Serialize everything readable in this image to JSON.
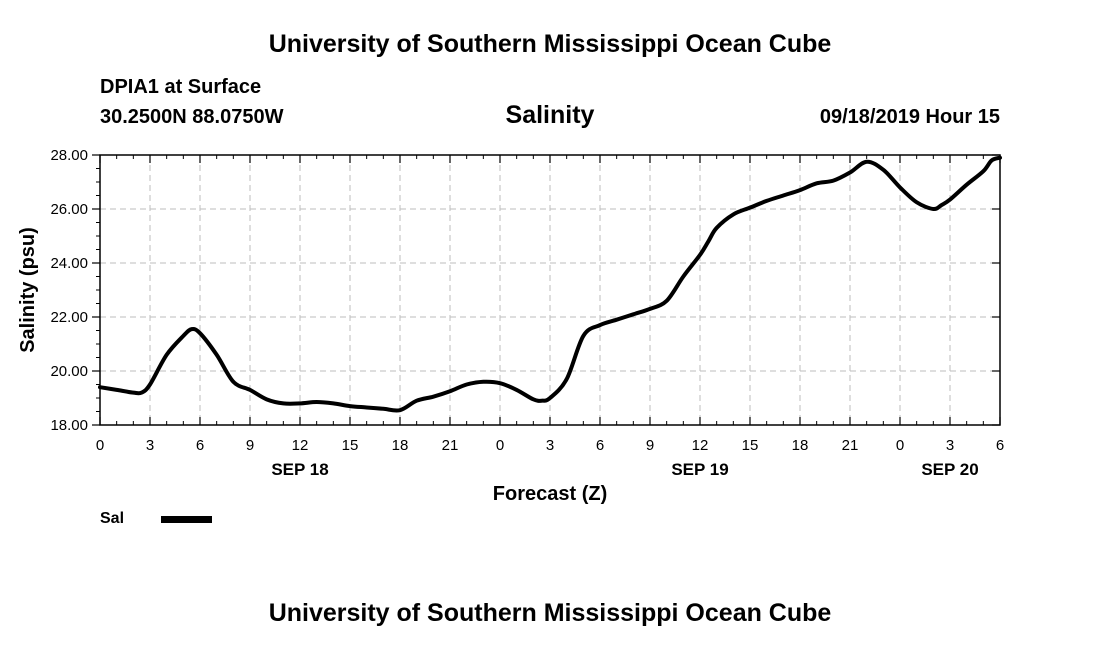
{
  "header": {
    "top_title": "University of Southern Mississippi Ocean Cube",
    "station": "DPIA1 at Surface",
    "coords": "30.2500N 88.0750W",
    "datetime": "09/18/2019 Hour 15"
  },
  "footer": {
    "bottom_title": "University of Southern Mississippi Ocean Cube"
  },
  "legend": {
    "label": "Sal",
    "color": "#000000"
  },
  "chart_data": {
    "type": "line",
    "title": "Salinity",
    "xlabel": "Forecast (Z)",
    "ylabel": "Salinity (psu)",
    "xlim": [
      0,
      54
    ],
    "ylim": [
      18.0,
      28.0
    ],
    "x_tick_step": 3,
    "x_tick_labels": [
      "0",
      "3",
      "6",
      "9",
      "12",
      "15",
      "18",
      "21",
      "0",
      "3",
      "6",
      "9",
      "12",
      "15",
      "18",
      "21",
      "0",
      "3",
      "6"
    ],
    "y_ticks": [
      18.0,
      20.0,
      22.0,
      24.0,
      26.0,
      28.0
    ],
    "y_tick_labels": [
      "18.00",
      "20.00",
      "22.00",
      "24.00",
      "26.00",
      "28.00"
    ],
    "date_labels": [
      {
        "label": "SEP 18",
        "hour": 12
      },
      {
        "label": "SEP 19",
        "hour": 36
      },
      {
        "label": "SEP 20",
        "hour": 51
      }
    ],
    "grid": true,
    "series": [
      {
        "name": "Sal",
        "color": "#000000",
        "x": [
          0,
          1,
          2,
          2.5,
          3,
          4,
          5,
          5.5,
          6,
          7,
          8,
          9,
          10,
          11,
          12,
          13,
          14,
          15,
          16,
          17,
          18,
          19,
          20,
          21,
          22,
          23,
          24,
          25,
          26,
          26.5,
          27,
          28,
          29,
          30,
          31,
          32,
          33,
          34,
          35,
          36,
          36.5,
          37,
          38,
          39,
          40,
          41,
          42,
          43,
          44,
          45,
          46,
          47,
          48,
          49,
          50,
          50.5,
          51,
          52,
          53,
          53.5,
          54
        ],
        "values": [
          19.4,
          19.3,
          19.2,
          19.2,
          19.5,
          20.6,
          21.3,
          21.55,
          21.4,
          20.6,
          19.6,
          19.3,
          18.95,
          18.8,
          18.8,
          18.85,
          18.8,
          18.7,
          18.65,
          18.6,
          18.55,
          18.9,
          19.05,
          19.25,
          19.5,
          19.6,
          19.55,
          19.3,
          18.95,
          18.9,
          19.0,
          19.7,
          21.3,
          21.7,
          21.9,
          22.1,
          22.3,
          22.6,
          23.5,
          24.3,
          24.8,
          25.3,
          25.8,
          26.05,
          26.3,
          26.5,
          26.7,
          26.95,
          27.05,
          27.35,
          27.75,
          27.45,
          26.8,
          26.25,
          26.0,
          26.15,
          26.35,
          26.9,
          27.4,
          27.8,
          27.9
        ]
      }
    ]
  }
}
